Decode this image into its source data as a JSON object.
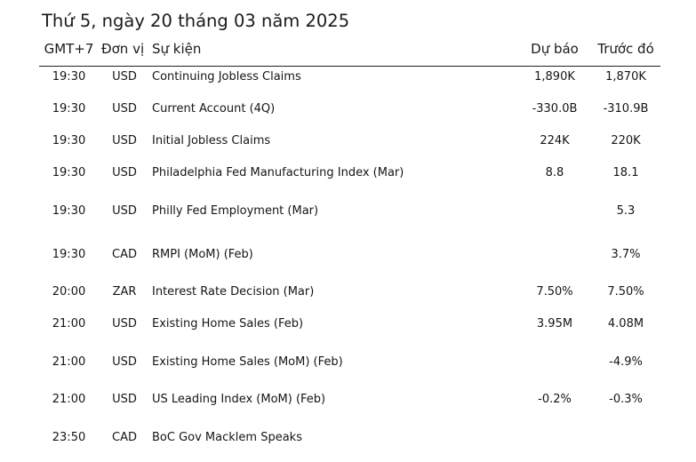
{
  "title": "Thứ 5, ngày 20 tháng 03 năm 2025",
  "columns": {
    "time": "GMT+7",
    "currency": "Đơn vị",
    "event": "Sự kiện",
    "forecast": "Dự báo",
    "previous": "Trước đó"
  },
  "rows": [
    {
      "time": "19:30",
      "currency": "USD",
      "event": "Continuing Jobless Claims",
      "forecast": "1,890K",
      "previous": "1,870K"
    },
    {
      "time": "19:30",
      "currency": "USD",
      "event": "Current Account (4Q)",
      "forecast": "-330.0B",
      "previous": "-310.9B"
    },
    {
      "time": "19:30",
      "currency": "USD",
      "event": "Initial Jobless Claims",
      "forecast": "224K",
      "previous": "220K"
    },
    {
      "time": "19:30",
      "currency": "USD",
      "event": "Philadelphia Fed Manufacturing Index (Mar)",
      "forecast": "8.8",
      "previous": "18.1"
    },
    {
      "time": "19:30",
      "currency": "USD",
      "event": "Philly Fed Employment (Mar)",
      "forecast": "",
      "previous": "5.3"
    },
    {
      "time": "19:30",
      "currency": "CAD",
      "event": "RMPI (MoM) (Feb)",
      "forecast": "",
      "previous": "3.7%"
    },
    {
      "time": "20:00",
      "currency": "ZAR",
      "event": "Interest Rate Decision (Mar)",
      "forecast": "7.50%",
      "previous": "7.50%"
    },
    {
      "time": "21:00",
      "currency": "USD",
      "event": "Existing Home Sales (Feb)",
      "forecast": "3.95M",
      "previous": "4.08M"
    },
    {
      "time": "21:00",
      "currency": "USD",
      "event": "Existing Home Sales (MoM) (Feb)",
      "forecast": "",
      "previous": "-4.9%"
    },
    {
      "time": "21:00",
      "currency": "USD",
      "event": "US Leading Index (MoM) (Feb)",
      "forecast": "-0.2%",
      "previous": "-0.3%"
    },
    {
      "time": "23:50",
      "currency": "CAD",
      "event": "BoC Gov Macklem Speaks",
      "forecast": "",
      "previous": ""
    }
  ]
}
